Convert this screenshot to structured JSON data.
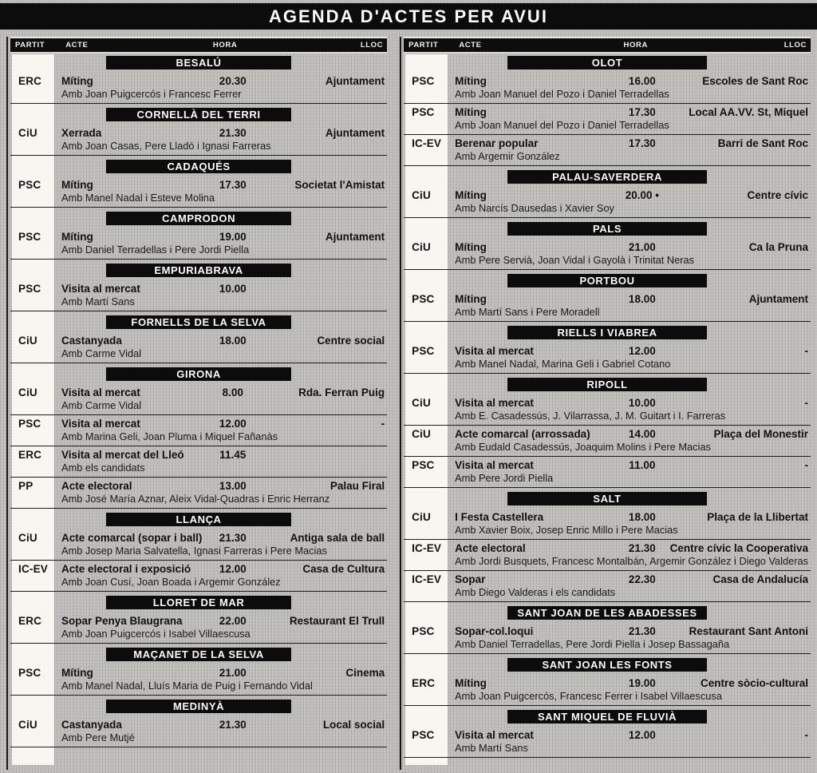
{
  "title": "AGENDA D'ACTES PER AVUI",
  "column_headers": {
    "partit": "PARTIT",
    "acte": "ACTE",
    "hora": "HORA",
    "lloc": "LLOC"
  },
  "colors": {
    "bar_black": "#0c0c0c",
    "paper_gray": "#c1c0bd",
    "party_strip_white": "#f7f6f1",
    "text_black": "#111111"
  },
  "columns": [
    {
      "sections": [
        {
          "town": "BESALÚ",
          "entries": [
            {
              "party": "ERC",
              "event": "Míting",
              "time": "20.30",
              "place": "Ajuntament",
              "detail": "Amb Joan Puigcercós i Francesc Ferrer"
            }
          ]
        },
        {
          "town": "CORNELLÀ DEL TERRI",
          "entries": [
            {
              "party": "CiU",
              "event": "Xerrada",
              "time": "21.30",
              "place": "Ajuntament",
              "detail": "Amb Joan Casas, Pere Lladó i Ignasi Farreras"
            }
          ]
        },
        {
          "town": "CADAQUÉS",
          "entries": [
            {
              "party": "PSC",
              "event": "Míting",
              "time": "17.30",
              "place": "Societat l'Amistat",
              "detail": "Amb Manel Nadal i Esteve Molina"
            }
          ]
        },
        {
          "town": "CAMPRODON",
          "entries": [
            {
              "party": "PSC",
              "event": "Míting",
              "time": "19.00",
              "place": "Ajuntament",
              "detail": "Amb Daniel Terradellas i Pere Jordi Piella"
            }
          ]
        },
        {
          "town": "EMPURIABRAVA",
          "entries": [
            {
              "party": "PSC",
              "event": "Visita al mercat",
              "time": "10.00",
              "place": "",
              "detail": "Amb Martí Sans"
            }
          ]
        },
        {
          "town": "FORNELLS DE LA SELVA",
          "entries": [
            {
              "party": "CiU",
              "event": "Castanyada",
              "time": "18.00",
              "place": "Centre social",
              "detail": "Amb Carme Vidal"
            }
          ]
        },
        {
          "town": "GIRONA",
          "entries": [
            {
              "party": "CiU",
              "event": "Visita al mercat",
              "time": "8.00",
              "place": "Rda. Ferran Puig",
              "detail": "Amb Carme Vidal"
            },
            {
              "party": "PSC",
              "event": "Visita al mercat",
              "time": "12.00",
              "place": "-",
              "detail": "Amb Marina Geli, Joan Pluma i Miquel Fañanàs"
            },
            {
              "party": "ERC",
              "event": "Visita al mercat del Lleó",
              "time": "11.45",
              "place": "",
              "detail": "Amb els candidats"
            },
            {
              "party": "PP",
              "event": "Acte electoral",
              "time": "13.00",
              "place": "Palau Firal",
              "detail": "Amb José María Aznar, Aleix Vidal-Quadras i Enric Herranz"
            }
          ]
        },
        {
          "town": "LLANÇA",
          "entries": [
            {
              "party": "CiU",
              "event": "Acte comarcal (sopar i ball)",
              "time": "21.30",
              "place": "Antiga sala de ball",
              "detail": "Amb Josep Maria Salvatella, Ignasi Farreras i Pere Macias"
            },
            {
              "party": "IC-EV",
              "event": "Acte electoral i exposició",
              "time": "12.00",
              "place": "Casa de Cultura",
              "detail": "Amb Joan Cusí, Joan Boada i Argemir González"
            }
          ]
        },
        {
          "town": "LLORET DE MAR",
          "entries": [
            {
              "party": "ERC",
              "event": "Sopar Penya Blaugrana",
              "time": "22.00",
              "place": "Restaurant El Trull",
              "detail": "Amb Joan Puigcercós i Isabel Villaescusa"
            }
          ]
        },
        {
          "town": "MAÇANET DE LA SELVA",
          "entries": [
            {
              "party": "PSC",
              "event": "Míting",
              "time": "21.00",
              "place": "Cinema",
              "detail": "Amb Manel Nadal, Lluís Maria de Puig i Fernando Vidal"
            }
          ]
        },
        {
          "town": "MEDINYÀ",
          "entries": [
            {
              "party": "CiU",
              "event": "Castanyada",
              "time": "21.30",
              "place": "Local social",
              "detail": "Amb Pere Mutjé"
            }
          ]
        }
      ]
    },
    {
      "sections": [
        {
          "town": "OLOT",
          "entries": [
            {
              "party": "PSC",
              "event": "Míting",
              "time": "16.00",
              "place": "Escoles de Sant Roc",
              "detail": "Amb Joan Manuel del Pozo i Daniel Terradellas"
            },
            {
              "party": "PSC",
              "event": "Míting",
              "time": "17.30",
              "place": "Local AA.VV. St, Miquel",
              "detail": "Amb Joan Manuel del Pozo i Daniel Terradellas"
            },
            {
              "party": "IC-EV",
              "event": "Berenar popular",
              "time": "17.30",
              "place": "Barri de Sant Roc",
              "detail": "Amb Argemir González"
            }
          ]
        },
        {
          "town": "PALAU-SAVERDERA",
          "entries": [
            {
              "party": "CiU",
              "event": "Míting",
              "time": "20.00 •",
              "place": "Centre cívic",
              "detail": "Amb Narcís Dausedas i Xavier Soy"
            }
          ]
        },
        {
          "town": "PALS",
          "entries": [
            {
              "party": "CiU",
              "event": "Míting",
              "time": "21.00",
              "place": "Ca la Pruna",
              "detail": "Amb Pere Servià, Joan Vidal i Gayolà i Trinitat Neras"
            }
          ]
        },
        {
          "town": "PORTBOU",
          "entries": [
            {
              "party": "PSC",
              "event": "Míting",
              "time": "18.00",
              "place": "Ajuntament",
              "detail": "Amb Martí Sans i Pere Moradell"
            }
          ]
        },
        {
          "town": "RIELLS I VIABREA",
          "entries": [
            {
              "party": "PSC",
              "event": "Visita al mercat",
              "time": "12.00",
              "place": "-",
              "detail": "Amb Manel Nadal, Marina Geli i Gabriel Cotano"
            }
          ]
        },
        {
          "town": "RIPOLL",
          "entries": [
            {
              "party": "CiU",
              "event": "Visita al mercat",
              "time": "10.00",
              "place": "-",
              "detail": "Amb E. Casadessús, J. Vilarrassa, J. M. Guitart i I. Farreras"
            },
            {
              "party": "CiU",
              "event": "Acte comarcal (arrossada)",
              "time": "14.00",
              "place": "Plaça del Monestir",
              "detail": "Amb Eudald Casadessús, Joaquim Molins i Pere Macias"
            },
            {
              "party": "PSC",
              "event": "Visita al mercat",
              "time": "11.00",
              "place": "-",
              "detail": "Amb Pere Jordi Piella"
            }
          ]
        },
        {
          "town": "SALT",
          "entries": [
            {
              "party": "CiU",
              "event": "I Festa Castellera",
              "time": "18.00",
              "place": "Plaça de la Llibertat",
              "detail": "Amb Xavier Boix, Josep Enric Millo i Pere Macias"
            },
            {
              "party": "IC-EV",
              "event": "Acte electoral",
              "time": "21.30",
              "place": "Centre cívic la Cooperativa",
              "detail": "Amb Jordi Busquets, Francesc Montalbán, Argemir González i Diego Valderas"
            },
            {
              "party": "IC-EV",
              "event": "Sopar",
              "time": "22.30",
              "place": "Casa de Andalucía",
              "detail": "Amb Diego Valderas i els candidats"
            }
          ]
        },
        {
          "town": "SANT JOAN DE LES ABADESSES",
          "entries": [
            {
              "party": "PSC",
              "event": "Sopar-col.loqui",
              "time": "21.30",
              "place": "Restaurant Sant Antoni",
              "detail": "Amb Daniel Terradellas, Pere Jordi Piella i Josep Bassagaña"
            }
          ]
        },
        {
          "town": "SANT JOAN LES FONTS",
          "entries": [
            {
              "party": "ERC",
              "event": "Míting",
              "time": "19.00",
              "place": "Centre sòcio-cultural",
              "detail": "Amb Joan Puigcercós, Francesc Ferrer i Isabel Villaescusa"
            }
          ]
        },
        {
          "town": "SANT MIQUEL DE FLUVIÀ",
          "entries": [
            {
              "party": "PSC",
              "event": "Visita al mercat",
              "time": "12.00",
              "place": "-",
              "detail": "Amb Martí Sans"
            }
          ]
        }
      ]
    }
  ]
}
